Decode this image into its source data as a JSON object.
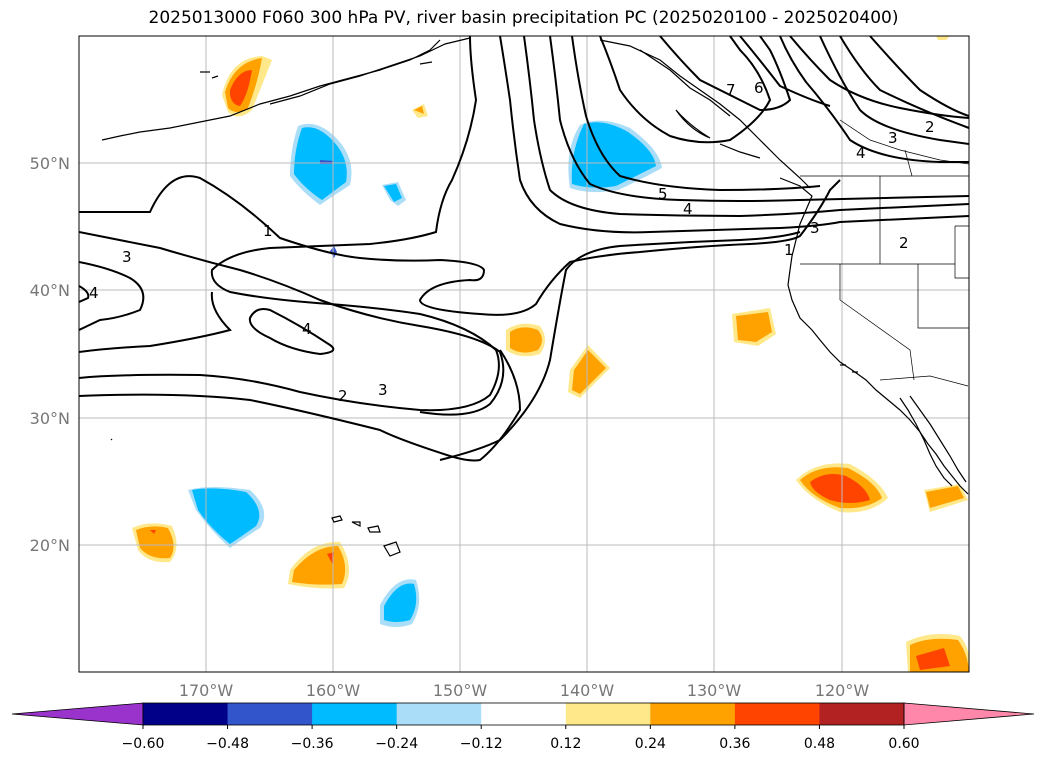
{
  "title": "2025013000 F060 300 hPa PV, river basin precipitation PC (2025020100 - 2025020400)",
  "map": {
    "lon_range": [
      -180,
      -110
    ],
    "lat_range": [
      10,
      60
    ],
    "lon_ticks": [
      {
        "value": -170,
        "label": "170°W"
      },
      {
        "value": -160,
        "label": "160°W"
      },
      {
        "value": -150,
        "label": "150°W"
      },
      {
        "value": -140,
        "label": "140°W"
      },
      {
        "value": -130,
        "label": "130°W"
      },
      {
        "value": -120,
        "label": "120°W"
      }
    ],
    "lat_ticks": [
      {
        "value": 50,
        "label": "50°N"
      },
      {
        "value": 40,
        "label": "40°N"
      },
      {
        "value": 30,
        "label": "30°N"
      },
      {
        "value": 20,
        "label": "20°N"
      }
    ],
    "grid": true,
    "contour_labels": [
      "1",
      "2",
      "3",
      "4",
      "5",
      "6",
      "7"
    ]
  },
  "colorbar": {
    "ticks": [
      "−0.60",
      "−0.48",
      "−0.36",
      "−0.24",
      "−0.12",
      "0.12",
      "0.24",
      "0.36",
      "0.48",
      "0.60"
    ],
    "colors": [
      "#9933cc",
      "#000088",
      "#3355cc",
      "#00bbff",
      "#aaddf7",
      "#ffffff",
      "#ffe88a",
      "#ffa200",
      "#ff4400",
      "#b22222",
      "#ff88aa"
    ],
    "extend": "both"
  },
  "colors": {
    "grid": "#bbbbbb",
    "contour": "#000000",
    "coast": "#000000"
  }
}
